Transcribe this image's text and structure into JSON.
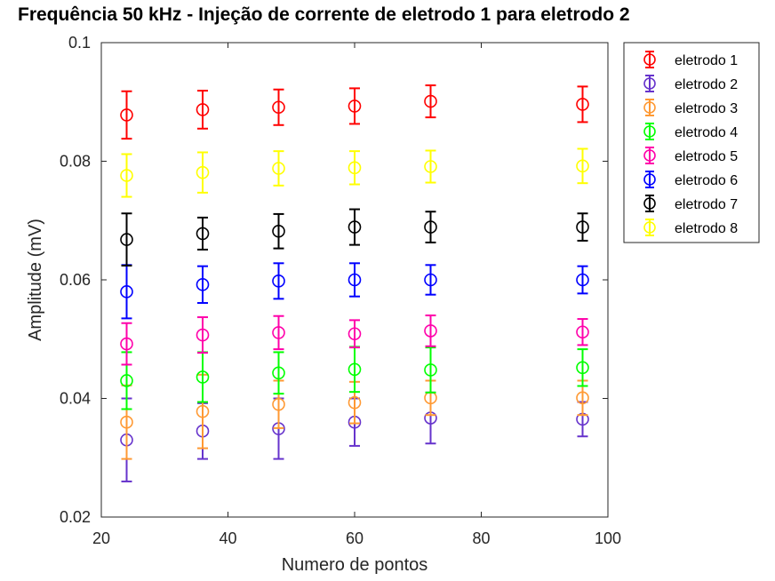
{
  "chart_data": {
    "type": "scatter",
    "title": "Frequência 50 kHz - Injeção de corrente de eletrodo 1 para eletrodo 2",
    "xlabel": "Numero de pontos",
    "ylabel": "Amplitude (mV)",
    "xlim": [
      20,
      100
    ],
    "ylim": [
      0.02,
      0.1
    ],
    "xticks": [
      20,
      40,
      60,
      80,
      100
    ],
    "xtick_labels": [
      "20",
      "40",
      "60",
      "80",
      "100"
    ],
    "yticks": [
      0.02,
      0.04,
      0.06,
      0.08,
      0.1
    ],
    "ytick_labels": [
      "0.02",
      "0.04",
      "0.06",
      "0.08",
      "0.1"
    ],
    "grid": false,
    "legend_position": "outside-top-right",
    "marker": "circle-with-errorbar",
    "x": [
      24,
      36,
      48,
      60,
      72,
      96
    ],
    "series": [
      {
        "name": "eletrodo 1",
        "color": "#ff0000",
        "values": [
          0.0878,
          0.0887,
          0.0891,
          0.0893,
          0.0901,
          0.0896
        ],
        "errors": [
          0.004,
          0.0032,
          0.003,
          0.003,
          0.0027,
          0.003
        ]
      },
      {
        "name": "eletrodo 2",
        "color": "#6633cc",
        "values": [
          0.033,
          0.0345,
          0.0349,
          0.036,
          0.0367,
          0.0365
        ],
        "errors": [
          0.007,
          0.0047,
          0.0051,
          0.004,
          0.0043,
          0.0029
        ]
      },
      {
        "name": "eletrodo 3",
        "color": "#ff9933",
        "values": [
          0.036,
          0.0378,
          0.039,
          0.0393,
          0.0401,
          0.0401
        ],
        "errors": [
          0.0062,
          0.0062,
          0.004,
          0.0035,
          0.0029,
          0.0029
        ]
      },
      {
        "name": "eletrodo 4",
        "color": "#00ff00",
        "values": [
          0.043,
          0.0436,
          0.0443,
          0.0449,
          0.0448,
          0.0452
        ],
        "errors": [
          0.0048,
          0.0042,
          0.0035,
          0.0038,
          0.0038,
          0.0031
        ]
      },
      {
        "name": "eletrodo 5",
        "color": "#ff00aa",
        "values": [
          0.0492,
          0.0507,
          0.0511,
          0.0509,
          0.0514,
          0.0512
        ],
        "errors": [
          0.0035,
          0.003,
          0.0028,
          0.0023,
          0.0026,
          0.0022
        ]
      },
      {
        "name": "eletrodo 6",
        "color": "#0000ff",
        "values": [
          0.058,
          0.0592,
          0.0598,
          0.06,
          0.06,
          0.06
        ],
        "errors": [
          0.0045,
          0.0031,
          0.003,
          0.0028,
          0.0025,
          0.0023
        ]
      },
      {
        "name": "eletrodo 7",
        "color": "#000000",
        "values": [
          0.0668,
          0.0678,
          0.0682,
          0.0689,
          0.0689,
          0.0689
        ],
        "errors": [
          0.0044,
          0.0027,
          0.0029,
          0.003,
          0.0026,
          0.0023
        ]
      },
      {
        "name": "eletrodo 8",
        "color": "#ffff00",
        "values": [
          0.0776,
          0.0781,
          0.0788,
          0.0789,
          0.0791,
          0.0792
        ],
        "errors": [
          0.0036,
          0.0034,
          0.0029,
          0.0028,
          0.0027,
          0.0029
        ]
      }
    ]
  }
}
